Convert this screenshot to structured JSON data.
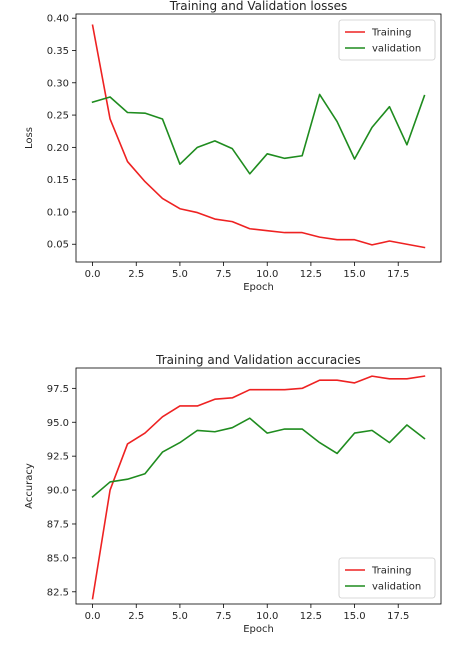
{
  "chart_data": [
    {
      "type": "line",
      "title": "Training and Validation losses",
      "xlabel": "Epoch",
      "ylabel": "Loss",
      "xlim": [
        -0.95,
        19.95
      ],
      "ylim": [
        0.0225,
        0.4065
      ],
      "xticks": [
        0,
        2.5,
        5,
        7.5,
        10,
        12.5,
        15,
        17.5
      ],
      "xtick_labels": [
        "0.0",
        "2.5",
        "5.0",
        "7.5",
        "10.0",
        "12.5",
        "15.0",
        "17.5"
      ],
      "yticks": [
        0.05,
        0.1,
        0.15,
        0.2,
        0.25,
        0.3,
        0.35,
        0.4
      ],
      "ytick_labels": [
        "0.05",
        "0.10",
        "0.15",
        "0.20",
        "0.25",
        "0.30",
        "0.35",
        "0.40"
      ],
      "grid": false,
      "legend_position": "top-right",
      "x": [
        0,
        1,
        2,
        3,
        4,
        5,
        6,
        7,
        8,
        9,
        10,
        11,
        12,
        13,
        14,
        15,
        16,
        17,
        18,
        19
      ],
      "series": [
        {
          "name": "Training",
          "color": "#ee2222",
          "values": [
            0.389,
            0.244,
            0.178,
            0.147,
            0.121,
            0.105,
            0.099,
            0.089,
            0.085,
            0.074,
            0.071,
            0.068,
            0.068,
            0.061,
            0.057,
            0.057,
            0.049,
            0.055,
            0.05,
            0.045
          ]
        },
        {
          "name": "validation",
          "color": "#1f8c1f",
          "values": [
            0.27,
            0.278,
            0.254,
            0.253,
            0.244,
            0.174,
            0.2,
            0.21,
            0.198,
            0.159,
            0.19,
            0.183,
            0.187,
            0.282,
            0.24,
            0.182,
            0.231,
            0.263,
            0.204,
            0.28
          ]
        }
      ]
    },
    {
      "type": "line",
      "title": "Training and Validation accuracies",
      "xlabel": "Epoch",
      "ylabel": "Accuracy",
      "xlim": [
        -0.95,
        19.95
      ],
      "ylim": [
        81.6,
        99.0
      ],
      "xticks": [
        0,
        2.5,
        5,
        7.5,
        10,
        12.5,
        15,
        17.5
      ],
      "xtick_labels": [
        "0.0",
        "2.5",
        "5.0",
        "7.5",
        "10.0",
        "12.5",
        "15.0",
        "17.5"
      ],
      "yticks": [
        82.5,
        85.0,
        87.5,
        90.0,
        92.5,
        95.0,
        97.5
      ],
      "ytick_labels": [
        "82.5",
        "85.0",
        "87.5",
        "90.0",
        "92.5",
        "95.0",
        "97.5"
      ],
      "grid": false,
      "legend_position": "bottom-right",
      "x": [
        0,
        1,
        2,
        3,
        4,
        5,
        6,
        7,
        8,
        9,
        10,
        11,
        12,
        13,
        14,
        15,
        16,
        17,
        18,
        19
      ],
      "series": [
        {
          "name": "Training",
          "color": "#ee2222",
          "values": [
            82.0,
            90.0,
            93.4,
            94.2,
            95.4,
            96.2,
            96.2,
            96.7,
            96.8,
            97.4,
            97.4,
            97.4,
            97.5,
            98.1,
            98.1,
            97.9,
            98.4,
            98.2,
            98.2,
            98.4
          ]
        },
        {
          "name": "validation",
          "color": "#1f8c1f",
          "values": [
            89.5,
            90.6,
            90.8,
            91.2,
            92.8,
            93.5,
            94.4,
            94.3,
            94.6,
            95.3,
            94.2,
            94.5,
            94.5,
            93.5,
            92.7,
            94.2,
            94.4,
            93.5,
            94.8,
            93.8
          ]
        }
      ]
    }
  ]
}
